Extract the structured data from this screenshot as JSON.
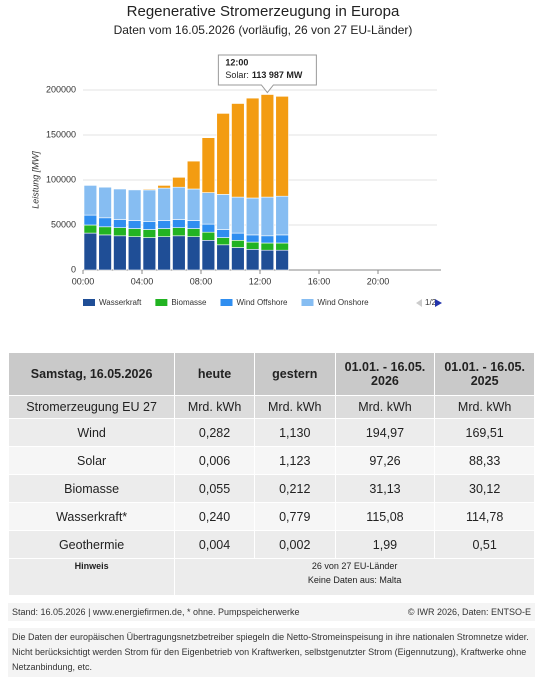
{
  "chart_data": {
    "type": "bar",
    "stacked": true,
    "title": "Regenerative Stromerzeugung in Europa",
    "subtitle": "Daten vom 16.05.2026 (vorläufig, 26 von 27 EU-Länder)",
    "y_label": "Leistung [MW]",
    "x": [
      0,
      1,
      2,
      3,
      4,
      5,
      6,
      7,
      8,
      9,
      10,
      11,
      12,
      13
    ],
    "xlim": [
      0,
      24
    ],
    "xticks": [
      {
        "value": 0,
        "label": "00:00"
      },
      {
        "value": 4,
        "label": "04:00"
      },
      {
        "value": 8,
        "label": "08:00"
      },
      {
        "value": 12,
        "label": "12:00"
      },
      {
        "value": 16,
        "label": "16:00"
      },
      {
        "value": 20,
        "label": "20:00"
      }
    ],
    "ylim": [
      0,
      200000
    ],
    "yticks": [
      0,
      50000,
      100000,
      150000,
      200000
    ],
    "grid": true,
    "series": [
      {
        "name": "Wasserkraft",
        "color": "#1f4e96",
        "legend": true,
        "values": [
          41000,
          39000,
          38000,
          37000,
          36000,
          37000,
          38000,
          37000,
          33000,
          28000,
          25000,
          23000,
          22000,
          22000
        ]
      },
      {
        "name": "Biomasse",
        "color": "#22b322",
        "legend": true,
        "values": [
          9000,
          9000,
          9000,
          9000,
          9000,
          9000,
          9000,
          9000,
          9000,
          8000,
          8000,
          8000,
          8000,
          8000
        ]
      },
      {
        "name": "Wind Offshore",
        "color": "#2f8ef0",
        "legend": true,
        "values": [
          11000,
          10000,
          9000,
          9000,
          9000,
          9000,
          9000,
          9000,
          9000,
          9000,
          8000,
          8000,
          8000,
          9000
        ]
      },
      {
        "name": "Wind Onshore",
        "color": "#86bdf2",
        "legend": true,
        "values": [
          33000,
          34000,
          34000,
          34000,
          35000,
          36000,
          36000,
          35000,
          35000,
          39000,
          40000,
          41000,
          43000,
          43000
        ]
      },
      {
        "name": "Solar",
        "color": "#f39c12",
        "legend": false,
        "values": [
          0,
          0,
          0,
          0,
          1000,
          3000,
          11000,
          31000,
          61000,
          90000,
          104000,
          111000,
          113987,
          111000
        ]
      }
    ],
    "legend_pager": "1/2",
    "tooltip": {
      "title": "12:00",
      "label": "Solar:",
      "value_label": "113 987 MW"
    }
  },
  "table": {
    "header": [
      "Samstag, 16.05.2026",
      "heute",
      "gestern",
      "01.01. - 16.05. 2026",
      "01.01. - 16.05. 2025"
    ],
    "units": [
      "Stromerzeugung EU 27",
      "Mrd. kWh",
      "Mrd. kWh",
      "Mrd. kWh",
      "Mrd. kWh"
    ],
    "rows": [
      [
        "Wind",
        "0,282",
        "1,130",
        "194,97",
        "169,51"
      ],
      [
        "Solar",
        "0,006",
        "1,123",
        "97,26",
        "88,33"
      ],
      [
        "Biomasse",
        "0,055",
        "0,212",
        "31,13",
        "30,12"
      ],
      [
        "Wasserkraft*",
        "0,240",
        "0,779",
        "115,08",
        "114,78"
      ],
      [
        "Geothermie",
        "0,004",
        "0,002",
        "1,99",
        "0,51"
      ]
    ],
    "note": {
      "label": "Hinweis",
      "lines": [
        "26 von 27 EU-Länder",
        "Keine Daten aus: Malta"
      ]
    }
  },
  "footer": {
    "left": "Stand: 16.05.2026 | www.energiefirmen.de, * ohne. Pumpspeicherwerke",
    "right": "© IWR 2026, Daten: ENTSO-E"
  },
  "disclaimer": "Die Daten der europäischen Übertragungsnetzbetreiber spiegeln die Netto-Stromeinspeisung in ihre nationalen Stromnetze wider. Nicht berücksichtigt werden Strom für den Eigenbetrieb von Kraftwerken, selbstgenutzter Strom (Eigennutzung), Kraftwerke ohne Netzanbindung, etc."
}
